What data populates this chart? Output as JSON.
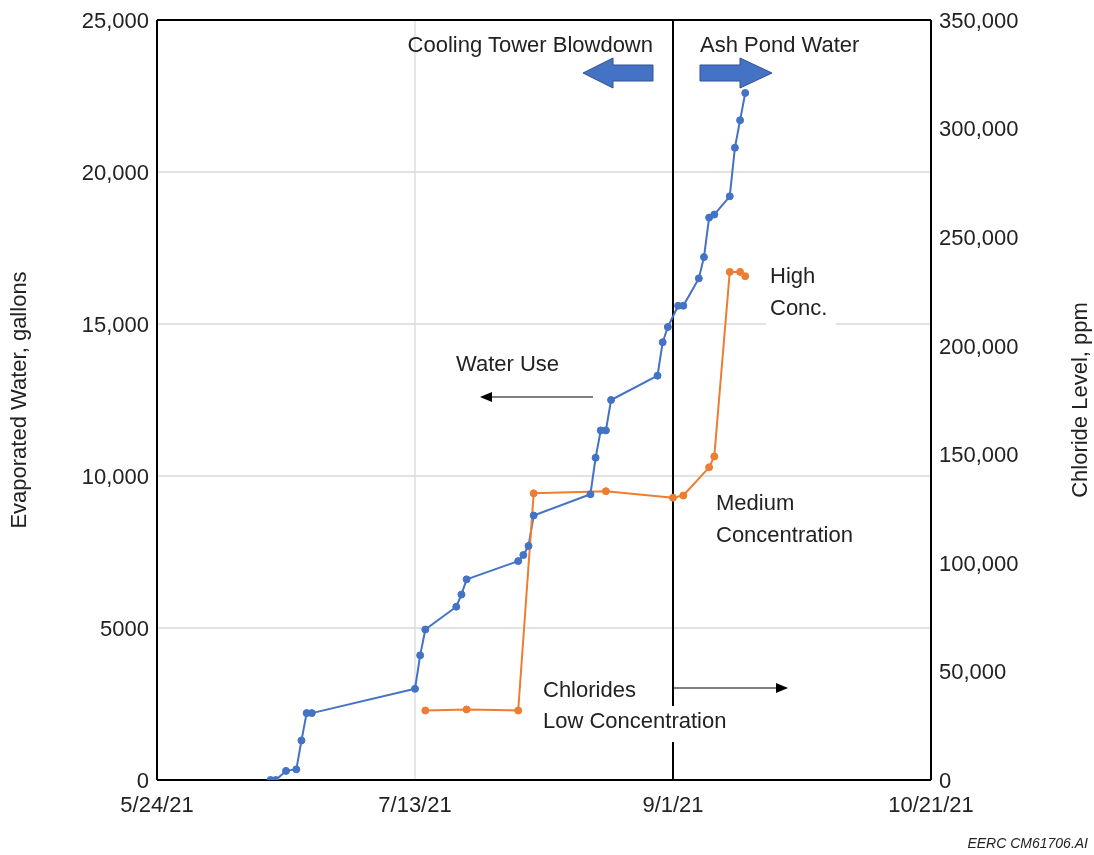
{
  "chart_data": {
    "type": "line",
    "ylabel": "Evaporated Water, gallons",
    "y2label": "Chloride Level, ppm",
    "xlim": [
      "2021-05-24",
      "2021-10-21"
    ],
    "xticks": [
      {
        "value": "2021-05-24",
        "label": "5/24/21"
      },
      {
        "value": "2021-07-13",
        "label": "7/13/21"
      },
      {
        "value": "2021-09-01",
        "label": "9/1/21"
      },
      {
        "value": "2021-10-21",
        "label": "10/21/21"
      }
    ],
    "ylim": [
      0,
      25000
    ],
    "yticks": [
      0,
      5000,
      {
        "value": 10000,
        "label": "10,000"
      },
      {
        "value": 15000,
        "label": "15,000"
      },
      {
        "value": 20000,
        "label": "20,000"
      },
      {
        "value": 25000,
        "label": "25,000"
      }
    ],
    "y2lim": [
      0,
      350000
    ],
    "y2ticks": [
      0,
      {
        "value": 50000,
        "label": "50,000"
      },
      {
        "value": 100000,
        "label": "100,000"
      },
      {
        "value": 150000,
        "label": "150,000"
      },
      {
        "value": 200000,
        "label": "200,000"
      },
      {
        "value": 250000,
        "label": "250,000"
      },
      {
        "value": 300000,
        "label": "300,000"
      },
      {
        "value": 350000,
        "label": "350,000"
      }
    ],
    "grid": true,
    "marker": "circle",
    "line_style": "solid",
    "series": [
      {
        "color": "#4472c4",
        "x": [
          "2021-06-15",
          "2021-06-16",
          "2021-06-18",
          "2021-06-20",
          "2021-06-21",
          "2021-06-22",
          "2021-06-23",
          "2021-07-13",
          "2021-07-14",
          "2021-07-15",
          "2021-07-21",
          "2021-07-22",
          "2021-07-23",
          "2021-08-02",
          "2021-08-03",
          "2021-08-04",
          "2021-08-05",
          "2021-08-16",
          "2021-08-17",
          "2021-08-18",
          "2021-08-19",
          "2021-08-20",
          "2021-08-29",
          "2021-08-30",
          "2021-08-31",
          "2021-09-02",
          "2021-09-03",
          "2021-09-06",
          "2021-09-07",
          "2021-09-08",
          "2021-09-09",
          "2021-09-12",
          "2021-09-13",
          "2021-09-14",
          "2021-09-15"
        ],
        "values": [
          0,
          0,
          300,
          350,
          1300,
          2200,
          2200,
          3000,
          4100,
          4950,
          5700,
          6100,
          6600,
          7200,
          7400,
          7700,
          8700,
          9400,
          10600,
          11500,
          11500,
          12500,
          13300,
          14400,
          14900,
          15600,
          15600,
          16500,
          17200,
          18500,
          18600,
          19200,
          20800,
          21700,
          22600
        ]
      },
      {
        "color": "#ed7d31",
        "axis": "y2",
        "x": [
          "2021-07-15",
          "2021-07-23",
          "2021-08-02",
          "2021-08-05",
          "2021-08-19",
          "2021-09-01",
          "2021-09-03",
          "2021-09-08",
          "2021-09-09",
          "2021-09-12",
          "2021-09-14",
          "2021-09-15"
        ],
        "values": [
          32000,
          32500,
          32000,
          132000,
          133000,
          130000,
          131000,
          144000,
          149000,
          234000,
          234000,
          232000
        ]
      }
    ],
    "ref_lines": [
      {
        "axis": "x",
        "value": "2021-09-01",
        "color": "#000000"
      }
    ],
    "annotations": [
      "Cooling Tower Blowdown",
      "Ash Pond Water",
      "Water Use",
      "Chlorides",
      "Low Concentration",
      "Medium Concentration",
      "High Conc.",
      "EERC CM61706.AI"
    ]
  }
}
